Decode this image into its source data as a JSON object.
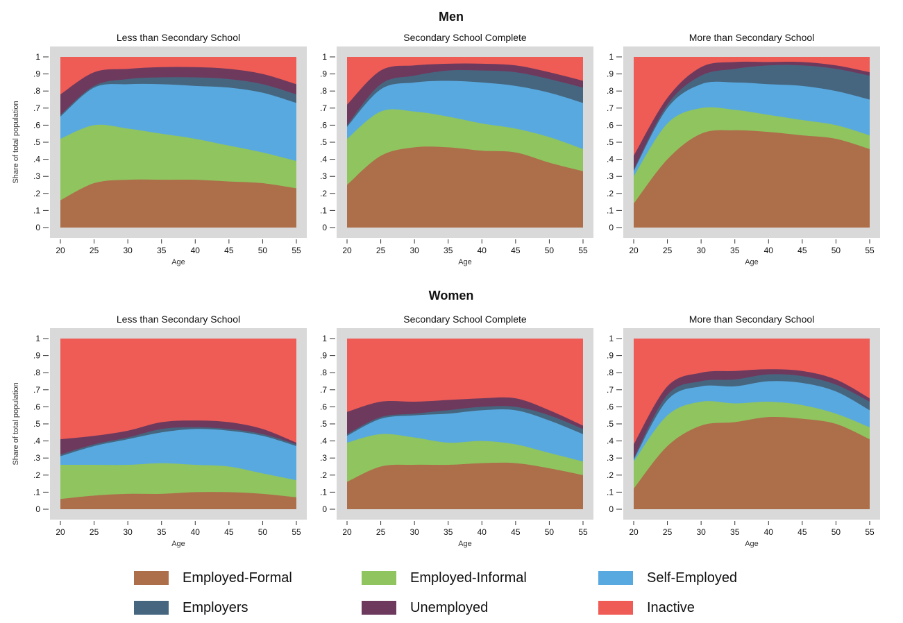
{
  "colors": {
    "panel_bg": "#d9d9d9",
    "axis": "#333333",
    "text": "#111111"
  },
  "sections": [
    {
      "title": "Men"
    },
    {
      "title": "Women"
    }
  ],
  "ylabel": "Share of total population",
  "xlabel": "Age",
  "yticks": [
    "0",
    ".1",
    ".2",
    ".3",
    ".4",
    ".5",
    ".6",
    ".7",
    ".8",
    ".9",
    "1"
  ],
  "xticks": [
    "20",
    "25",
    "30",
    "35",
    "40",
    "45",
    "50",
    "55"
  ],
  "legend": [
    {
      "label": "Employed-Formal",
      "color": "#ad6e4a"
    },
    {
      "label": "Employed-Informal",
      "color": "#8fc45f"
    },
    {
      "label": "Self-Employed",
      "color": "#58a9e0"
    },
    {
      "label": "Employers",
      "color": "#46667f"
    },
    {
      "label": "Unemployed",
      "color": "#6d3a5e"
    },
    {
      "label": "Inactive",
      "color": "#ef5b55"
    }
  ],
  "chart_data": [
    {
      "type": "area",
      "stacked": true,
      "group": "Men",
      "title": "Less than Secondary School",
      "xlabel": "Age",
      "ylabel": "Share of total population",
      "xlim": [
        20,
        55
      ],
      "ylim": [
        0,
        1
      ],
      "x": [
        20,
        25,
        30,
        35,
        40,
        45,
        50,
        55
      ],
      "cumulative": [
        {
          "name": "Employed-Formal",
          "values": [
            0.16,
            0.26,
            0.28,
            0.28,
            0.28,
            0.27,
            0.26,
            0.23
          ]
        },
        {
          "name": "Employed-Informal",
          "values": [
            0.52,
            0.6,
            0.58,
            0.55,
            0.52,
            0.48,
            0.44,
            0.39
          ]
        },
        {
          "name": "Self-Employed",
          "values": [
            0.65,
            0.82,
            0.84,
            0.84,
            0.83,
            0.82,
            0.79,
            0.73
          ]
        },
        {
          "name": "Employers",
          "values": [
            0.66,
            0.83,
            0.87,
            0.88,
            0.88,
            0.87,
            0.84,
            0.78
          ]
        },
        {
          "name": "Unemployed",
          "values": [
            0.78,
            0.91,
            0.93,
            0.94,
            0.94,
            0.93,
            0.9,
            0.84
          ]
        },
        {
          "name": "Inactive",
          "values": [
            1,
            1,
            1,
            1,
            1,
            1,
            1,
            1
          ]
        }
      ]
    },
    {
      "type": "area",
      "stacked": true,
      "group": "Men",
      "title": "Secondary School Complete",
      "xlabel": "Age",
      "ylabel": "Share of total population",
      "xlim": [
        20,
        55
      ],
      "ylim": [
        0,
        1
      ],
      "x": [
        20,
        25,
        30,
        35,
        40,
        45,
        50,
        55
      ],
      "cumulative": [
        {
          "name": "Employed-Formal",
          "values": [
            0.25,
            0.42,
            0.47,
            0.47,
            0.45,
            0.44,
            0.38,
            0.33
          ]
        },
        {
          "name": "Employed-Informal",
          "values": [
            0.52,
            0.68,
            0.68,
            0.65,
            0.61,
            0.58,
            0.53,
            0.46
          ]
        },
        {
          "name": "Self-Employed",
          "values": [
            0.59,
            0.81,
            0.85,
            0.86,
            0.85,
            0.83,
            0.79,
            0.73
          ]
        },
        {
          "name": "Employers",
          "values": [
            0.6,
            0.84,
            0.89,
            0.92,
            0.92,
            0.91,
            0.87,
            0.82
          ]
        },
        {
          "name": "Unemployed",
          "values": [
            0.72,
            0.92,
            0.95,
            0.96,
            0.96,
            0.95,
            0.91,
            0.86
          ]
        },
        {
          "name": "Inactive",
          "values": [
            1,
            1,
            1,
            1,
            1,
            1,
            1,
            1
          ]
        }
      ]
    },
    {
      "type": "area",
      "stacked": true,
      "group": "Men",
      "title": "More than Secondary School",
      "xlabel": "Age",
      "ylabel": "Share of total population",
      "xlim": [
        20,
        55
      ],
      "ylim": [
        0,
        1
      ],
      "x": [
        20,
        25,
        30,
        35,
        40,
        45,
        50,
        55
      ],
      "cumulative": [
        {
          "name": "Employed-Formal",
          "values": [
            0.14,
            0.4,
            0.55,
            0.57,
            0.56,
            0.54,
            0.52,
            0.46
          ]
        },
        {
          "name": "Employed-Informal",
          "values": [
            0.3,
            0.61,
            0.7,
            0.69,
            0.66,
            0.63,
            0.6,
            0.54
          ]
        },
        {
          "name": "Self-Employed",
          "values": [
            0.33,
            0.7,
            0.84,
            0.85,
            0.84,
            0.83,
            0.8,
            0.75
          ]
        },
        {
          "name": "Employers",
          "values": [
            0.34,
            0.72,
            0.89,
            0.93,
            0.95,
            0.95,
            0.93,
            0.89
          ]
        },
        {
          "name": "Unemployed",
          "values": [
            0.42,
            0.76,
            0.94,
            0.97,
            0.97,
            0.97,
            0.95,
            0.91
          ]
        },
        {
          "name": "Inactive",
          "values": [
            1,
            1,
            1,
            1,
            1,
            1,
            1,
            1
          ]
        }
      ]
    },
    {
      "type": "area",
      "stacked": true,
      "group": "Women",
      "title": "Less than Secondary School",
      "xlabel": "Age",
      "ylabel": "Share of total population",
      "xlim": [
        20,
        55
      ],
      "ylim": [
        0,
        1
      ],
      "x": [
        20,
        25,
        30,
        35,
        40,
        45,
        50,
        55
      ],
      "cumulative": [
        {
          "name": "Employed-Formal",
          "values": [
            0.06,
            0.08,
            0.09,
            0.09,
            0.1,
            0.1,
            0.09,
            0.07
          ]
        },
        {
          "name": "Employed-Informal",
          "values": [
            0.26,
            0.26,
            0.26,
            0.27,
            0.26,
            0.25,
            0.21,
            0.17
          ]
        },
        {
          "name": "Self-Employed",
          "values": [
            0.31,
            0.37,
            0.41,
            0.45,
            0.47,
            0.46,
            0.43,
            0.37
          ]
        },
        {
          "name": "Employers",
          "values": [
            0.32,
            0.38,
            0.42,
            0.47,
            0.48,
            0.47,
            0.44,
            0.38
          ]
        },
        {
          "name": "Unemployed",
          "values": [
            0.41,
            0.43,
            0.46,
            0.51,
            0.52,
            0.51,
            0.47,
            0.39
          ]
        },
        {
          "name": "Inactive",
          "values": [
            1,
            1,
            1,
            1,
            1,
            1,
            1,
            1
          ]
        }
      ]
    },
    {
      "type": "area",
      "stacked": true,
      "group": "Women",
      "title": "Secondary School Complete",
      "xlabel": "Age",
      "ylabel": "Share of total population",
      "xlim": [
        20,
        55
      ],
      "ylim": [
        0,
        1
      ],
      "x": [
        20,
        25,
        30,
        35,
        40,
        45,
        50,
        55
      ],
      "cumulative": [
        {
          "name": "Employed-Formal",
          "values": [
            0.16,
            0.25,
            0.26,
            0.26,
            0.27,
            0.27,
            0.24,
            0.2
          ]
        },
        {
          "name": "Employed-Informal",
          "values": [
            0.39,
            0.44,
            0.42,
            0.39,
            0.4,
            0.38,
            0.33,
            0.28
          ]
        },
        {
          "name": "Self-Employed",
          "values": [
            0.43,
            0.53,
            0.55,
            0.56,
            0.58,
            0.58,
            0.52,
            0.44
          ]
        },
        {
          "name": "Employers",
          "values": [
            0.44,
            0.54,
            0.56,
            0.58,
            0.6,
            0.6,
            0.55,
            0.47
          ]
        },
        {
          "name": "Unemployed",
          "values": [
            0.57,
            0.63,
            0.63,
            0.64,
            0.65,
            0.65,
            0.58,
            0.49
          ]
        },
        {
          "name": "Inactive",
          "values": [
            1,
            1,
            1,
            1,
            1,
            1,
            1,
            1
          ]
        }
      ]
    },
    {
      "type": "area",
      "stacked": true,
      "group": "Women",
      "title": "More than Secondary School",
      "xlabel": "Age",
      "ylabel": "Share of total population",
      "xlim": [
        20,
        55
      ],
      "ylim": [
        0,
        1
      ],
      "x": [
        20,
        25,
        30,
        35,
        40,
        45,
        50,
        55
      ],
      "cumulative": [
        {
          "name": "Employed-Formal",
          "values": [
            0.12,
            0.37,
            0.49,
            0.51,
            0.54,
            0.53,
            0.5,
            0.41
          ]
        },
        {
          "name": "Employed-Informal",
          "values": [
            0.28,
            0.55,
            0.63,
            0.62,
            0.63,
            0.61,
            0.56,
            0.48
          ]
        },
        {
          "name": "Self-Employed",
          "values": [
            0.29,
            0.64,
            0.72,
            0.72,
            0.75,
            0.74,
            0.69,
            0.58
          ]
        },
        {
          "name": "Employers",
          "values": [
            0.3,
            0.67,
            0.75,
            0.76,
            0.79,
            0.78,
            0.73,
            0.63
          ]
        },
        {
          "name": "Unemployed",
          "values": [
            0.38,
            0.72,
            0.8,
            0.81,
            0.82,
            0.81,
            0.76,
            0.65
          ]
        },
        {
          "name": "Inactive",
          "values": [
            1,
            1,
            1,
            1,
            1,
            1,
            1,
            1
          ]
        }
      ]
    }
  ]
}
